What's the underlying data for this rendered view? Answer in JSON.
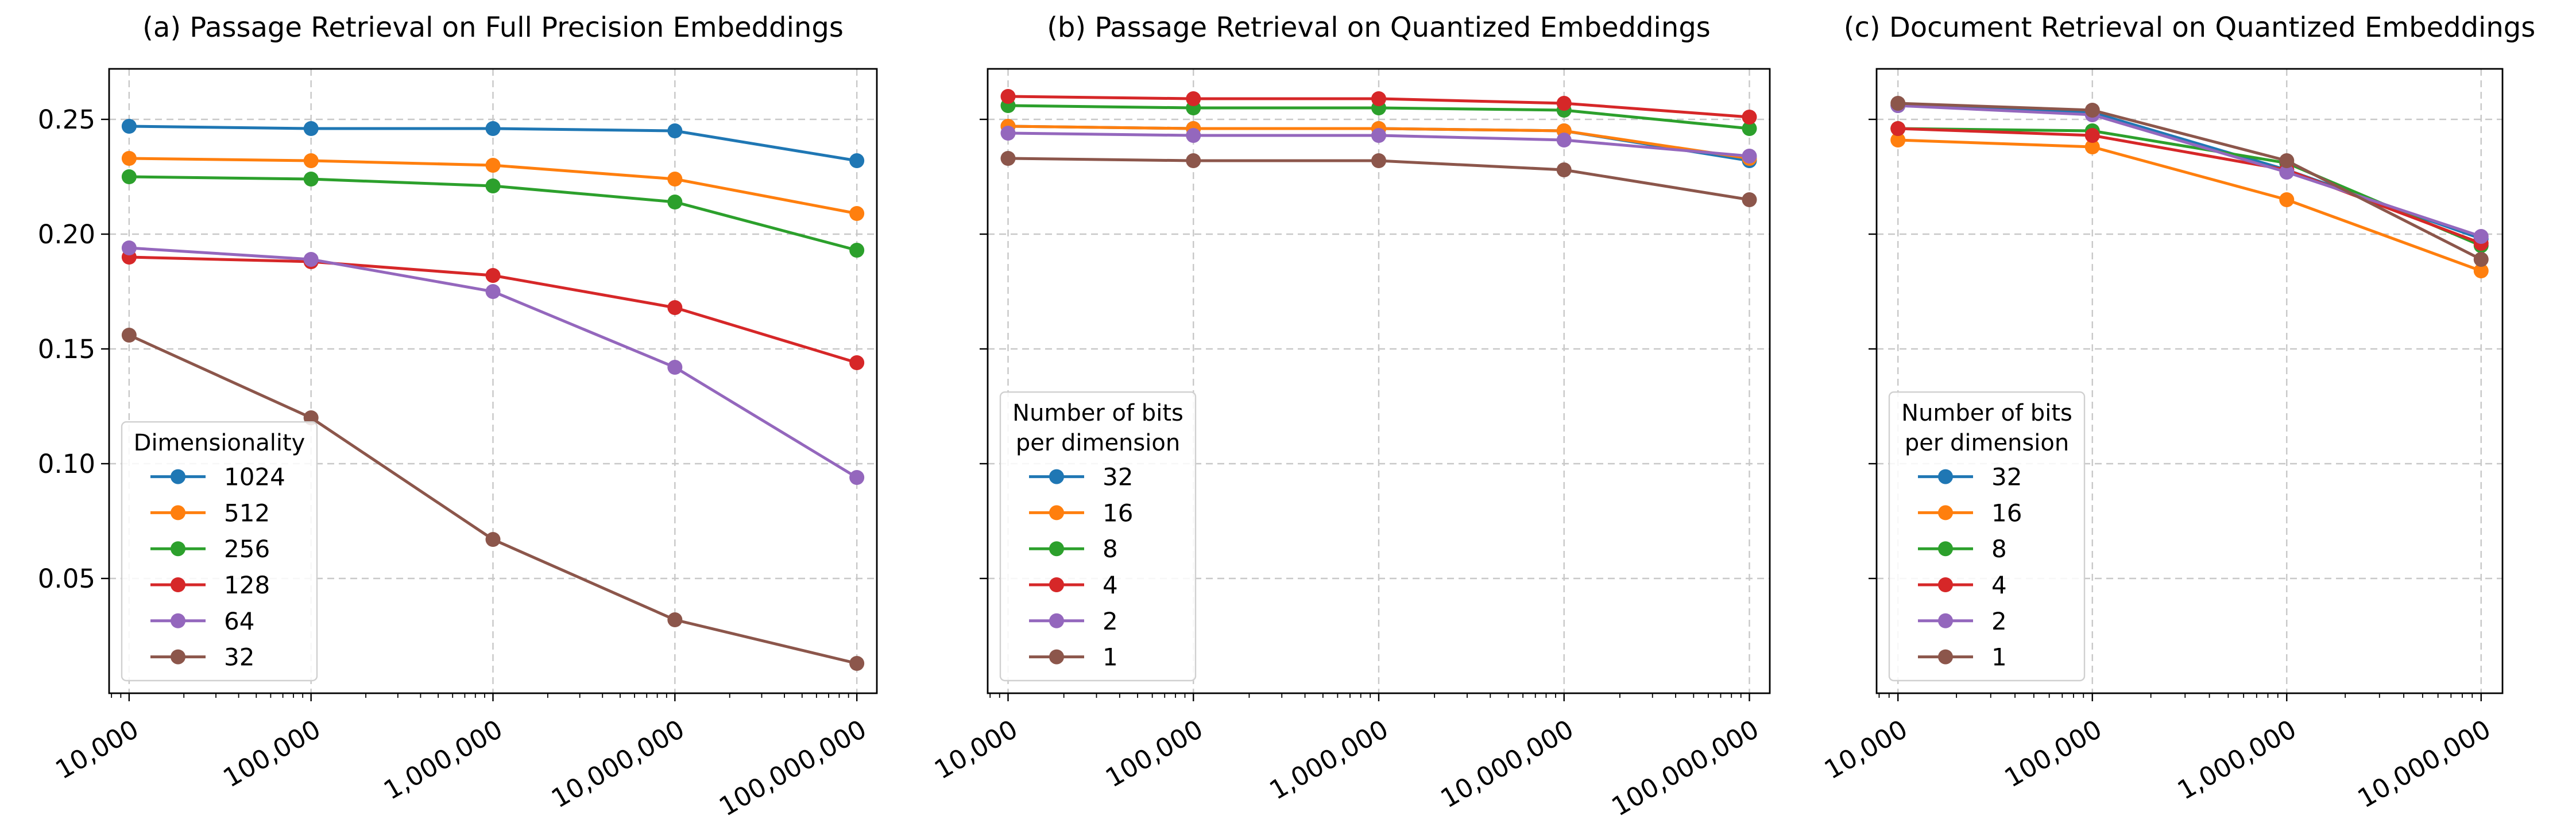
{
  "chart_data": [
    {
      "type": "line",
      "title": "(a) Passage Retrieval on Full Precision Embeddings",
      "xlabel": "",
      "ylabel": "",
      "x": [
        10000,
        100000,
        1000000,
        10000000,
        100000000
      ],
      "xscale": "log",
      "xtick_labels": [
        "10,000",
        "100,000",
        "1,000,000",
        "10,000,000",
        "100,000,000"
      ],
      "ytick_values": [
        0.05,
        0.1,
        0.15,
        0.2,
        0.25
      ],
      "ytick_labels": [
        "0.05",
        "0.10",
        "0.15",
        "0.20",
        "0.25"
      ],
      "ylim": [
        0.0,
        0.272
      ],
      "grid": true,
      "legend": {
        "title": "Dimensionality",
        "placement": "lower-left"
      },
      "series": [
        {
          "name": "1024",
          "color": "#1f77b4",
          "values": [
            0.247,
            0.246,
            0.246,
            0.245,
            0.232
          ]
        },
        {
          "name": "512",
          "color": "#ff7f0e",
          "values": [
            0.233,
            0.232,
            0.23,
            0.224,
            0.209
          ]
        },
        {
          "name": "256",
          "color": "#2ca02c",
          "values": [
            0.225,
            0.224,
            0.221,
            0.214,
            0.193
          ]
        },
        {
          "name": "128",
          "color": "#d62728",
          "values": [
            0.19,
            0.188,
            0.182,
            0.168,
            0.144
          ]
        },
        {
          "name": "64",
          "color": "#9467bd",
          "values": [
            0.194,
            0.189,
            0.175,
            0.142,
            0.094
          ]
        },
        {
          "name": "32",
          "color": "#8c564b",
          "values": [
            0.156,
            0.12,
            0.067,
            0.032,
            0.013
          ]
        }
      ]
    },
    {
      "type": "line",
      "title": "(b) Passage Retrieval on Quantized Embeddings",
      "xlabel": "",
      "ylabel": "",
      "x": [
        10000,
        100000,
        1000000,
        10000000,
        100000000
      ],
      "xscale": "log",
      "xtick_labels": [
        "10,000",
        "100,000",
        "1,000,000",
        "10,000,000",
        "100,000,000"
      ],
      "ylim": [
        0.0,
        0.272
      ],
      "grid": true,
      "legend": {
        "title": "Number of bits\nper dimension",
        "placement": "lower-left"
      },
      "series": [
        {
          "name": "32",
          "color": "#1f77b4",
          "values": [
            0.247,
            0.246,
            0.246,
            0.245,
            0.232
          ]
        },
        {
          "name": "16",
          "color": "#ff7f0e",
          "values": [
            0.247,
            0.246,
            0.246,
            0.245,
            0.233
          ]
        },
        {
          "name": "8",
          "color": "#2ca02c",
          "values": [
            0.256,
            0.255,
            0.255,
            0.254,
            0.246
          ]
        },
        {
          "name": "4",
          "color": "#d62728",
          "values": [
            0.26,
            0.259,
            0.259,
            0.257,
            0.251
          ]
        },
        {
          "name": "2",
          "color": "#9467bd",
          "values": [
            0.244,
            0.243,
            0.243,
            0.241,
            0.234
          ]
        },
        {
          "name": "1",
          "color": "#8c564b",
          "values": [
            0.233,
            0.232,
            0.232,
            0.228,
            0.215
          ]
        }
      ]
    },
    {
      "type": "line",
      "title": "(c) Document Retrieval on Quantized Embeddings",
      "xlabel": "",
      "ylabel": "",
      "x": [
        10000,
        100000,
        1000000,
        10000000
      ],
      "xscale": "log",
      "xtick_labels": [
        "10,000",
        "100,000",
        "1,000,000",
        "10,000,000"
      ],
      "ylim": [
        0.0,
        0.272
      ],
      "grid": true,
      "legend": {
        "title": "Number of bits\nper dimension",
        "placement": "lower-left"
      },
      "series": [
        {
          "name": "32",
          "color": "#1f77b4",
          "values": [
            0.256,
            0.253,
            0.228,
            0.198
          ]
        },
        {
          "name": "16",
          "color": "#ff7f0e",
          "values": [
            0.241,
            0.238,
            0.215,
            0.184
          ]
        },
        {
          "name": "8",
          "color": "#2ca02c",
          "values": [
            0.246,
            0.245,
            0.231,
            0.195
          ]
        },
        {
          "name": "4",
          "color": "#d62728",
          "values": [
            0.246,
            0.243,
            0.228,
            0.196
          ]
        },
        {
          "name": "2",
          "color": "#9467bd",
          "values": [
            0.256,
            0.252,
            0.227,
            0.199
          ]
        },
        {
          "name": "1",
          "color": "#8c564b",
          "values": [
            0.257,
            0.254,
            0.232,
            0.189
          ]
        }
      ]
    }
  ]
}
